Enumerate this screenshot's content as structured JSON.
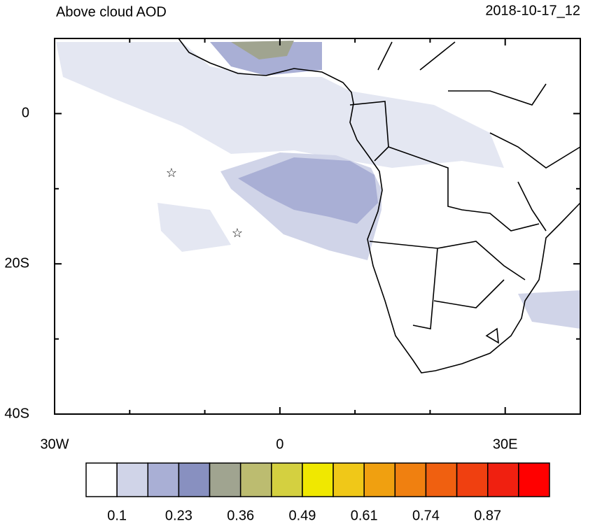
{
  "header": {
    "title": "Above cloud AOD",
    "date": "2018-10-17_12"
  },
  "map": {
    "xlim": [
      -30,
      40
    ],
    "ylim": [
      -40,
      10
    ],
    "xticks": [
      {
        "value": -30,
        "label": "30W"
      },
      0,
      {
        "value": 30,
        "label": "30E"
      }
    ],
    "yticks": [
      0,
      {
        "value": -20,
        "label": "20S"
      },
      {
        "value": -40,
        "label": "40S"
      }
    ],
    "minor_xticks": [
      -20,
      -10,
      10,
      20,
      40
    ],
    "minor_yticks": [
      -10,
      -30,
      10
    ]
  },
  "colorbar": {
    "colors": [
      "#ffffff",
      "#d0d4e8",
      "#a9afd5",
      "#8890c0",
      "#a0a490",
      "#bcbc70",
      "#d4d040",
      "#f0e800",
      "#f0c818",
      "#f0a010",
      "#f08010",
      "#f06010",
      "#f04010",
      "#f02010",
      "#ff0000"
    ],
    "labels": [
      0.1,
      0.23,
      0.36,
      0.49,
      0.61,
      0.74,
      0.87
    ]
  }
}
